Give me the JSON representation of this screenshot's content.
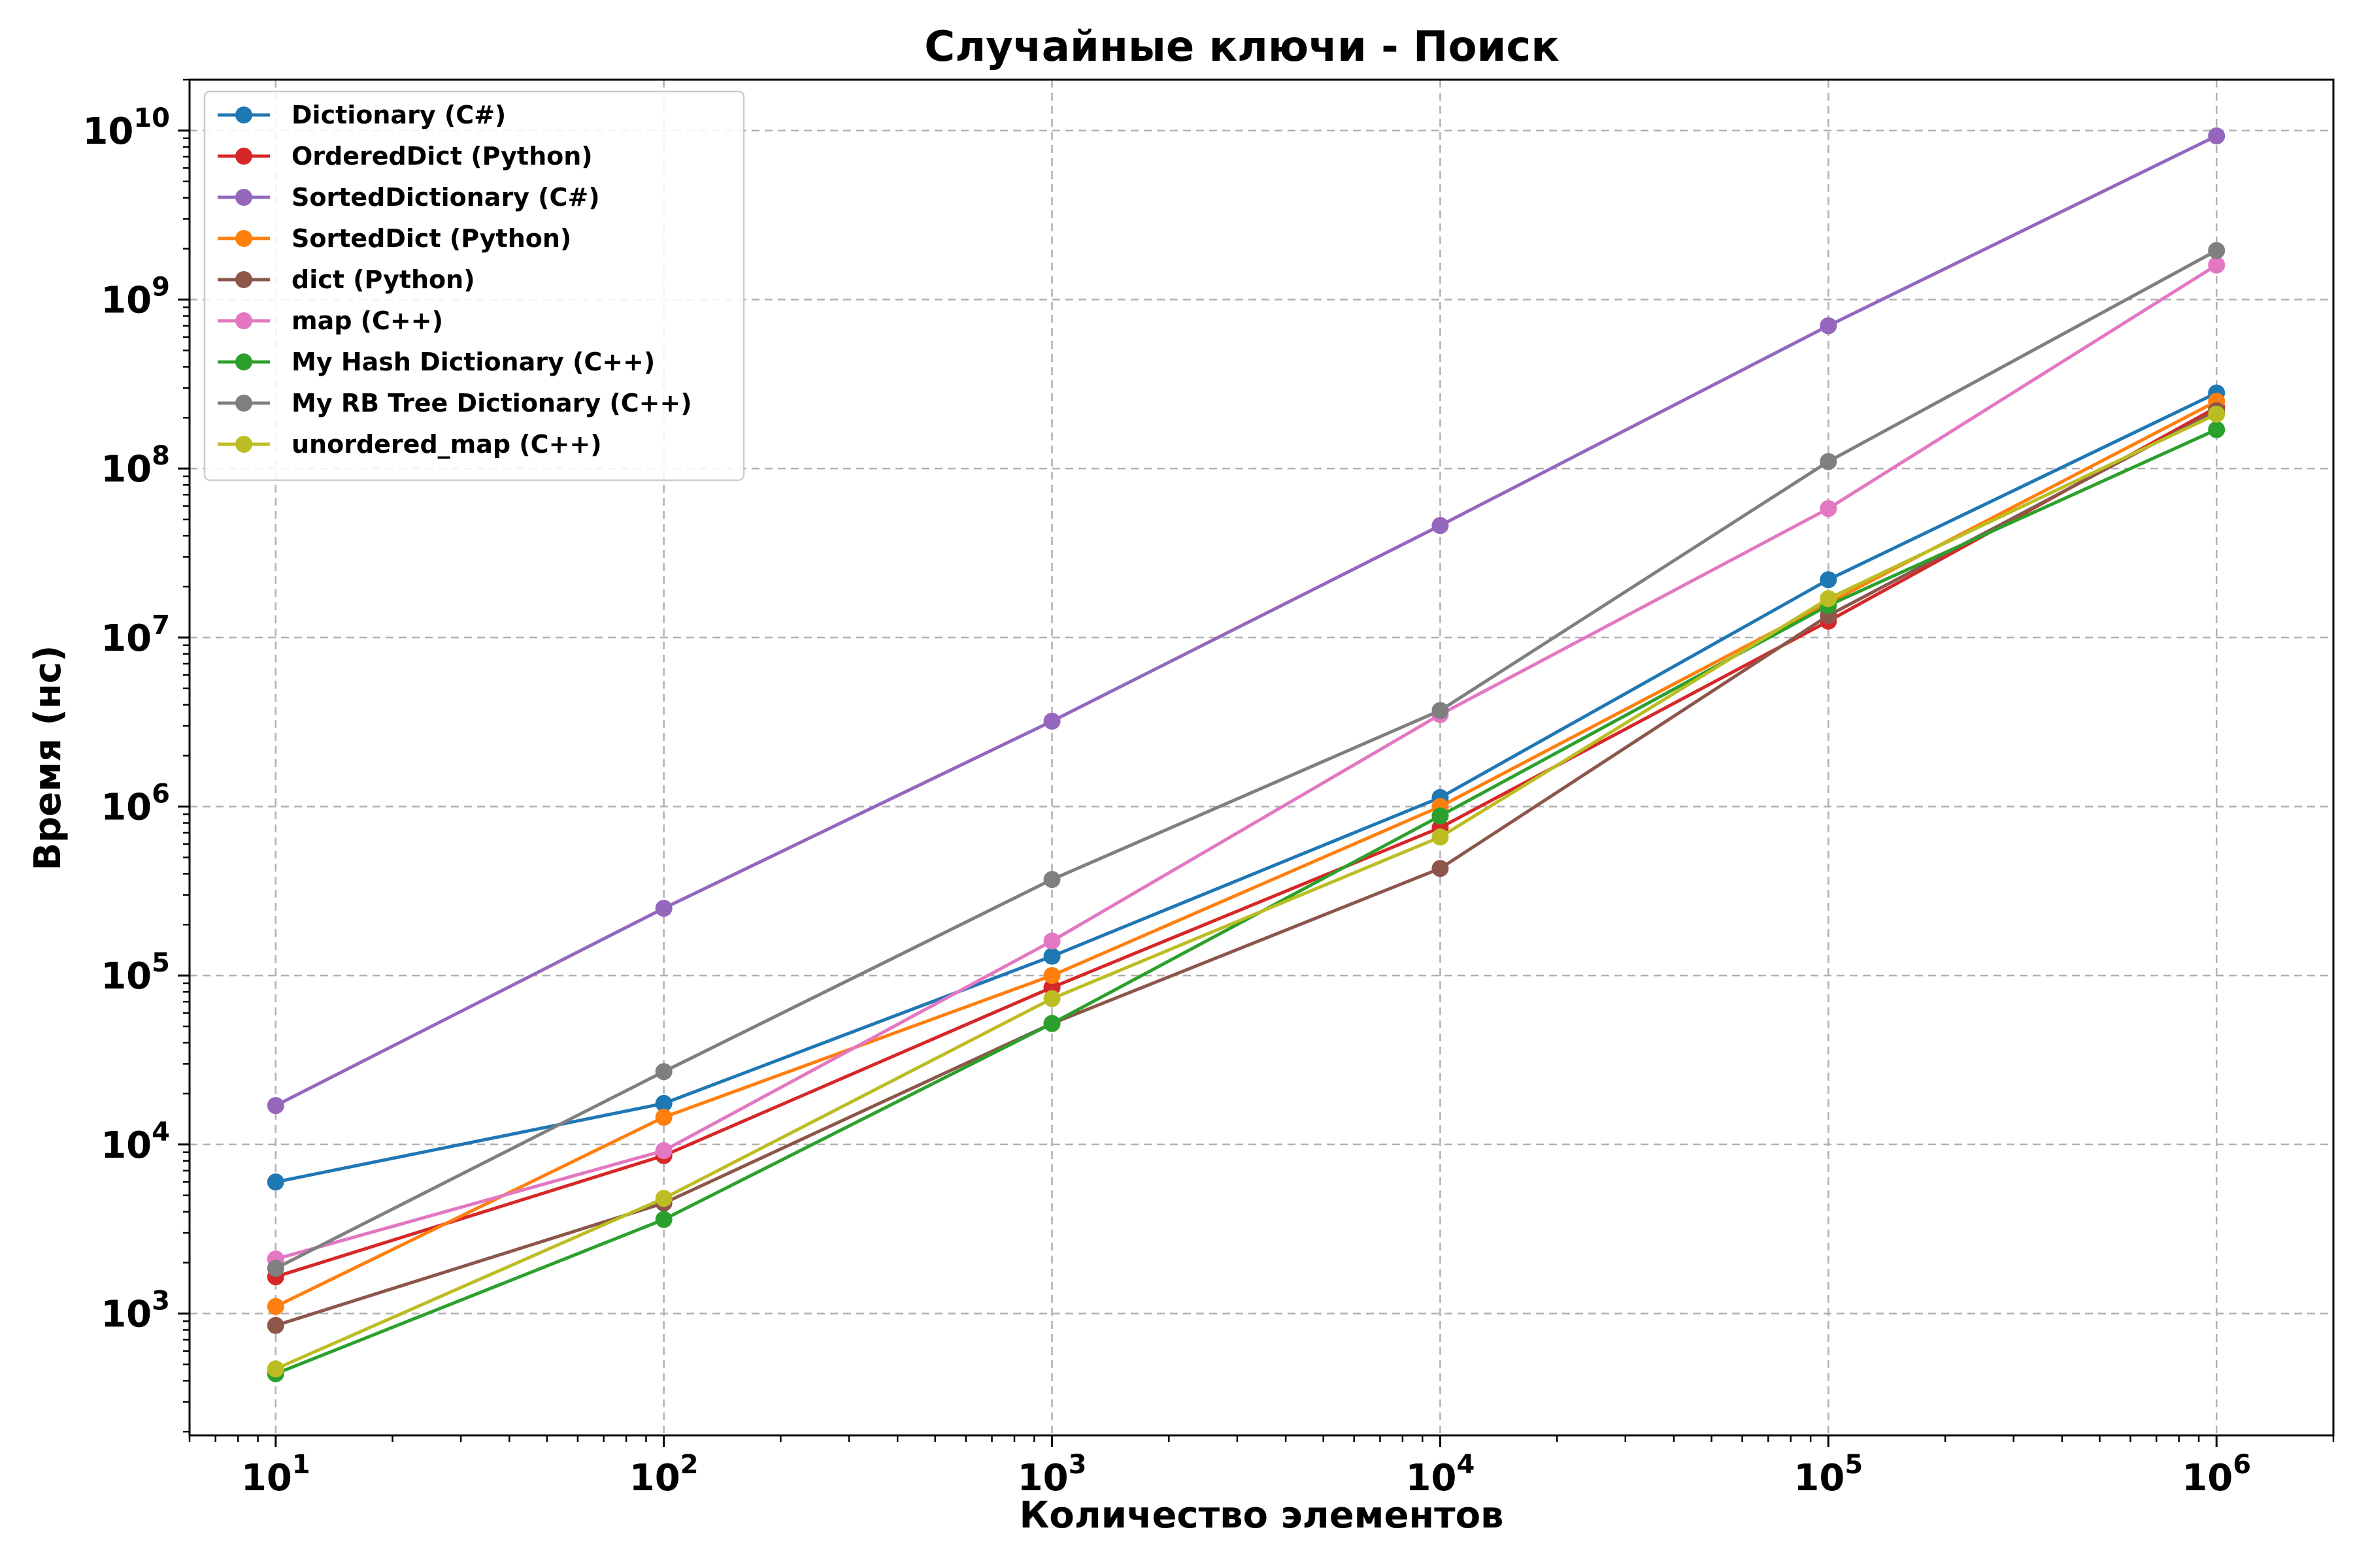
{
  "chart_data": {
    "type": "line",
    "title": "Случайные ключи - Поиск",
    "xlabel": "Количество элементов",
    "ylabel": "Время (нс)",
    "xscale": "log",
    "yscale": "log",
    "xlim": [
      6,
      2000000
    ],
    "ylim": [
      190,
      20000000000
    ],
    "grid": true,
    "legend_position": "upper left",
    "x": [
      10,
      100,
      1000,
      10000,
      100000,
      1000000
    ],
    "x_ticks": [
      {
        "value": 10,
        "base": "10",
        "exp": "1"
      },
      {
        "value": 100,
        "base": "10",
        "exp": "2"
      },
      {
        "value": 1000,
        "base": "10",
        "exp": "3"
      },
      {
        "value": 10000,
        "base": "10",
        "exp": "4"
      },
      {
        "value": 100000,
        "base": "10",
        "exp": "5"
      },
      {
        "value": 1000000,
        "base": "10",
        "exp": "6"
      }
    ],
    "y_ticks": [
      {
        "value": 1000,
        "base": "10",
        "exp": "3"
      },
      {
        "value": 10000,
        "base": "10",
        "exp": "4"
      },
      {
        "value": 100000,
        "base": "10",
        "exp": "5"
      },
      {
        "value": 1000000,
        "base": "10",
        "exp": "6"
      },
      {
        "value": 10000000,
        "base": "10",
        "exp": "7"
      },
      {
        "value": 100000000,
        "base": "10",
        "exp": "8"
      },
      {
        "value": 1000000000,
        "base": "10",
        "exp": "9"
      },
      {
        "value": 10000000000,
        "base": "10",
        "exp": "10"
      }
    ],
    "series": [
      {
        "name": "Dictionary (C#)",
        "color": "#1f77b4",
        "values": [
          6000,
          17500,
          130000,
          1130000,
          22000000,
          280000000
        ]
      },
      {
        "name": "OrderedDict (Python)",
        "color": "#d62728",
        "values": [
          1650,
          8600,
          85000,
          750000,
          12500000,
          230000000
        ]
      },
      {
        "name": "SortedDictionary (C#)",
        "color": "#9467bd",
        "values": [
          17000,
          250000,
          3200000,
          46000000,
          700000000,
          9300000000
        ]
      },
      {
        "name": "SortedDict (Python)",
        "color": "#ff7f0e",
        "values": [
          1100,
          14500,
          100000,
          1000000,
          16000000,
          250000000
        ]
      },
      {
        "name": "dict (Python)",
        "color": "#8c564b",
        "values": [
          850,
          4500,
          52000,
          430000,
          13500000,
          220000000
        ]
      },
      {
        "name": "map (C++)",
        "color": "#e377c2",
        "values": [
          2100,
          9200,
          160000,
          3500000,
          58000000,
          1600000000
        ]
      },
      {
        "name": "My Hash Dictionary (C++)",
        "color": "#2ca02c",
        "values": [
          440,
          3600,
          52000,
          880000,
          15500000,
          170000000
        ]
      },
      {
        "name": "My RB Tree Dictionary (C++)",
        "color": "#7f7f7f",
        "values": [
          1850,
          27000,
          370000,
          3700000,
          110000000,
          1950000000
        ]
      },
      {
        "name": "unordered_map (C++)",
        "color": "#bcbd22",
        "values": [
          470,
          4800,
          73000,
          660000,
          17000000,
          210000000
        ]
      }
    ]
  }
}
